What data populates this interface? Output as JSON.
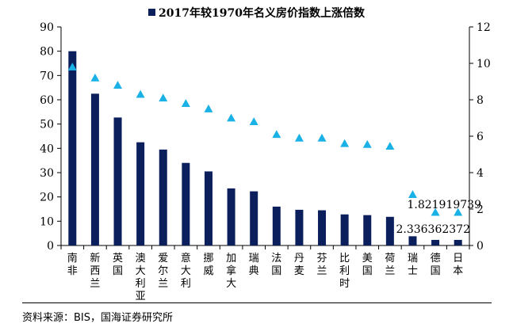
{
  "chart_data": {
    "type": "bar",
    "categories": [
      "南非",
      "新西兰",
      "英国",
      "澳大利亚",
      "爱尔兰",
      "意大利",
      "挪威",
      "加拿大",
      "瑞典",
      "法国",
      "丹麦",
      "芬兰",
      "比利时",
      "美国",
      "荷兰",
      "瑞士",
      "德国",
      "日本"
    ],
    "series": [
      {
        "name": "2017年较1970年名义房价指数上涨倍数",
        "axis": "left",
        "type": "bar",
        "values": [
          80,
          62.5,
          52.7,
          42.5,
          39.5,
          34,
          30.5,
          23.5,
          22.3,
          16,
          14.7,
          14.5,
          12.8,
          12.5,
          11.8,
          3.8,
          2.3,
          2.3
        ]
      },
      {
        "name": "",
        "axis": "right",
        "type": "scatter",
        "marker": "triangle",
        "values": [
          9.8,
          9.2,
          8.8,
          8.3,
          8.1,
          7.8,
          7.5,
          7.0,
          6.8,
          6.1,
          5.9,
          5.9,
          5.6,
          5.55,
          5.45,
          2.8,
          1.82,
          1.82
        ]
      }
    ],
    "annotations": [
      "2.336362372",
      "1.821919739"
    ],
    "ylim_left": [
      0,
      90
    ],
    "yticks_left": [
      0,
      10,
      20,
      30,
      40,
      50,
      60,
      70,
      80,
      90
    ],
    "ylim_right": [
      0,
      12
    ],
    "yticks_right": [
      0,
      2,
      4,
      6,
      8,
      10,
      12
    ],
    "colors": {
      "bar": "#0b1f5c",
      "marker": "#1ab2e6"
    },
    "legend_position": "top",
    "grid": false
  },
  "legend": {
    "label": "2017年较1970年名义房价指数上涨倍数"
  },
  "source": "资料来源：BIS，国海证券研究所"
}
